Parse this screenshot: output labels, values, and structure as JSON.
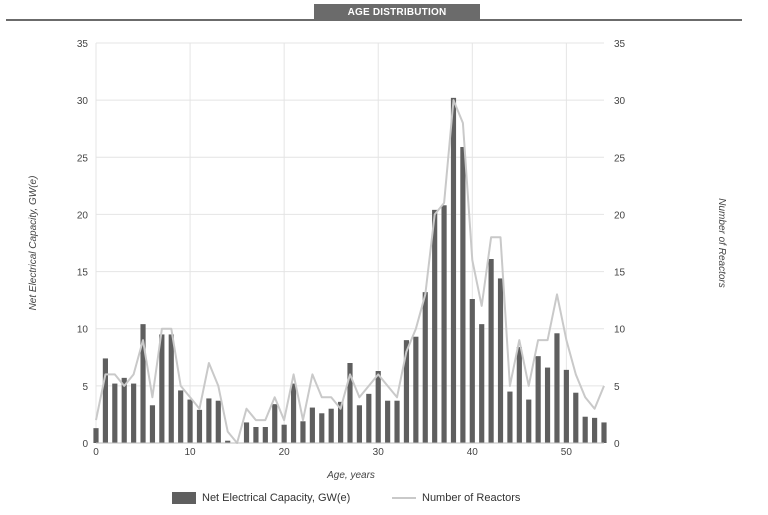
{
  "header": {
    "title": "AGE DISTRIBUTION"
  },
  "chart_data": {
    "type": "bar",
    "title": "AGE DISTRIBUTION",
    "xlabel": "Age, years",
    "ylabel_left": "Net Electrical Capacity, GW(e)",
    "ylabel_right": "Number of Reactors",
    "xlim": [
      0,
      54
    ],
    "ylim": [
      0,
      35
    ],
    "y_ticks": [
      0,
      5,
      10,
      15,
      20,
      25,
      30,
      35
    ],
    "x_ticks": [
      0,
      10,
      20,
      30,
      40,
      50
    ],
    "grid": true,
    "legend_position": "bottom",
    "x": [
      0,
      1,
      2,
      3,
      4,
      5,
      6,
      7,
      8,
      9,
      10,
      11,
      12,
      13,
      14,
      15,
      16,
      17,
      18,
      19,
      20,
      21,
      22,
      23,
      24,
      25,
      26,
      27,
      28,
      29,
      30,
      31,
      32,
      33,
      34,
      35,
      36,
      37,
      38,
      39,
      40,
      41,
      42,
      43,
      44,
      45,
      46,
      47,
      48,
      49,
      50,
      51,
      52,
      53,
      54
    ],
    "series": [
      {
        "name": "Net Electrical Capacity, GW(e)",
        "type": "bar",
        "color": "#5f5f5f",
        "values": [
          1.3,
          7.4,
          5.2,
          5.7,
          5.2,
          10.4,
          3.3,
          9.5,
          9.5,
          4.6,
          3.8,
          2.9,
          3.9,
          3.7,
          0.2,
          0,
          1.8,
          1.4,
          1.4,
          3.4,
          1.6,
          5.2,
          1.9,
          3.1,
          2.6,
          3.0,
          3.6,
          7.0,
          3.3,
          4.3,
          6.3,
          3.7,
          3.7,
          9.0,
          9.3,
          13.2,
          20.4,
          20.8,
          30.2,
          25.9,
          12.6,
          10.4,
          16.1,
          14.4,
          4.5,
          8.4,
          3.8,
          7.6,
          6.6,
          9.6,
          6.4,
          4.4,
          2.3,
          2.2,
          1.8
        ]
      },
      {
        "name": "Number of Reactors",
        "type": "line",
        "color": "#c9c9c9",
        "values": [
          2,
          6,
          6,
          5,
          6,
          9,
          4,
          10,
          10,
          5,
          4,
          3,
          7,
          5,
          1,
          0,
          3,
          2,
          2,
          4,
          2,
          6,
          2,
          6,
          4,
          4,
          3,
          6,
          4,
          5,
          6,
          5,
          4,
          8,
          10,
          13,
          20,
          21,
          30,
          28,
          16,
          12,
          18,
          18,
          5,
          9,
          5,
          9,
          9,
          13,
          9,
          6,
          4,
          3,
          5
        ]
      }
    ]
  }
}
